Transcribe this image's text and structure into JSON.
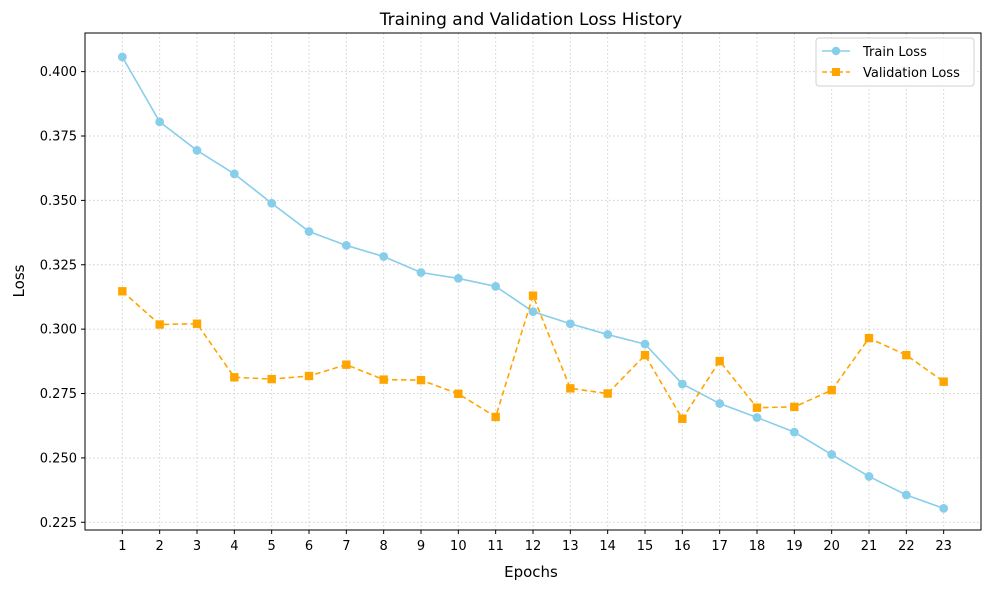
{
  "chart_data": {
    "type": "line",
    "title": "Training and Validation Loss History",
    "xlabel": "Epochs",
    "ylabel": "Loss",
    "x": [
      1,
      2,
      3,
      4,
      5,
      6,
      7,
      8,
      9,
      10,
      11,
      12,
      13,
      14,
      15,
      16,
      17,
      18,
      19,
      20,
      21,
      22,
      23
    ],
    "xlim": [
      0,
      24
    ],
    "ylim": [
      0.222,
      0.415
    ],
    "yticks": [
      0.225,
      0.25,
      0.275,
      0.3,
      0.325,
      0.35,
      0.375,
      0.4
    ],
    "ytick_labels": [
      "0.225",
      "0.250",
      "0.275",
      "0.300",
      "0.325",
      "0.350",
      "0.375",
      "0.400"
    ],
    "grid": true,
    "legend_position": "top-right",
    "series": [
      {
        "name": "Train Loss",
        "color": "#87ceeb",
        "linestyle": "solid",
        "marker": "circle",
        "values": [
          0.4057,
          0.3805,
          0.3694,
          0.3603,
          0.3489,
          0.3379,
          0.3325,
          0.3282,
          0.322,
          0.3197,
          0.3166,
          0.3068,
          0.3021,
          0.2979,
          0.2942,
          0.2787,
          0.2711,
          0.2657,
          0.26,
          0.2513,
          0.2428,
          0.2356,
          0.2304
        ]
      },
      {
        "name": "Validation Loss",
        "color": "#ffa500",
        "linestyle": "dashed",
        "marker": "square",
        "values": [
          0.3147,
          0.3018,
          0.3021,
          0.2813,
          0.2806,
          0.2818,
          0.2862,
          0.2804,
          0.2802,
          0.2749,
          0.2659,
          0.313,
          0.277,
          0.275,
          0.2899,
          0.2652,
          0.2876,
          0.2695,
          0.2698,
          0.2763,
          0.2965,
          0.2899,
          0.2796
        ]
      }
    ]
  }
}
